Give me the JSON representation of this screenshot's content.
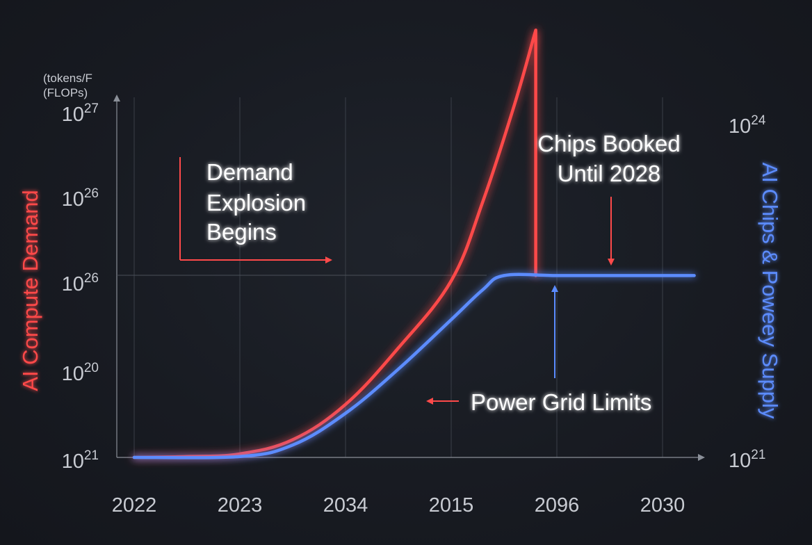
{
  "chart_data": {
    "type": "line",
    "left_axis": {
      "unit_line1": "(tokens/F",
      "unit_line2": "(FLOPs)",
      "label": "AI Compute Demand",
      "ticks": [
        {
          "base": "10",
          "exp": "27"
        },
        {
          "base": "10",
          "exp": "26"
        },
        {
          "base": "10",
          "exp": "26"
        },
        {
          "base": "10",
          "exp": "20"
        },
        {
          "base": "10",
          "exp": "21"
        }
      ]
    },
    "right_axis": {
      "label": "AI Chips & Poweey Supply",
      "ticks": [
        {
          "base": "10",
          "exp": "24"
        },
        {
          "base": "10",
          "exp": "21"
        }
      ]
    },
    "x_ticks": [
      "2022",
      "2023",
      "2034",
      "2015",
      "2096",
      "2030"
    ],
    "series": [
      {
        "key": "demand",
        "color": "#ff4a4a",
        "points": [
          [
            0.0,
            0.0
          ],
          [
            0.5,
            0.005
          ],
          [
            1.0,
            0.02
          ],
          [
            1.5,
            0.1
          ],
          [
            2.0,
            0.3
          ],
          [
            2.5,
            0.62
          ],
          [
            3.0,
            1.0
          ],
          [
            3.3,
            1.45
          ],
          [
            3.6,
            2.0
          ],
          [
            3.8,
            2.42
          ],
          [
            3.8,
            1.03
          ]
        ]
      },
      {
        "key": "supply",
        "color": "#5b8cff",
        "points": [
          [
            0.0,
            0.0
          ],
          [
            1.0,
            0.005
          ],
          [
            1.5,
            0.07
          ],
          [
            2.0,
            0.25
          ],
          [
            2.5,
            0.5
          ],
          [
            3.0,
            0.78
          ],
          [
            3.3,
            0.95
          ],
          [
            3.5,
            1.03
          ],
          [
            4.0,
            1.03
          ],
          [
            4.6,
            1.03
          ],
          [
            5.3,
            1.03
          ]
        ]
      }
    ],
    "annotations": {
      "demand_explosion": [
        "Demand",
        "Explosion",
        "Begins"
      ],
      "chips_booked": [
        "Chips Booked",
        "Until 2028"
      ],
      "power_grid": "Power Grid Limits"
    },
    "grid": true,
    "colors": {
      "demand": "#ff4a4a",
      "supply": "#5b8cff",
      "axis_text": "#c8cbd2",
      "annotation_text": "#ffffff",
      "arrow": "#ff4a4a",
      "grid": "#3a3f48"
    }
  }
}
